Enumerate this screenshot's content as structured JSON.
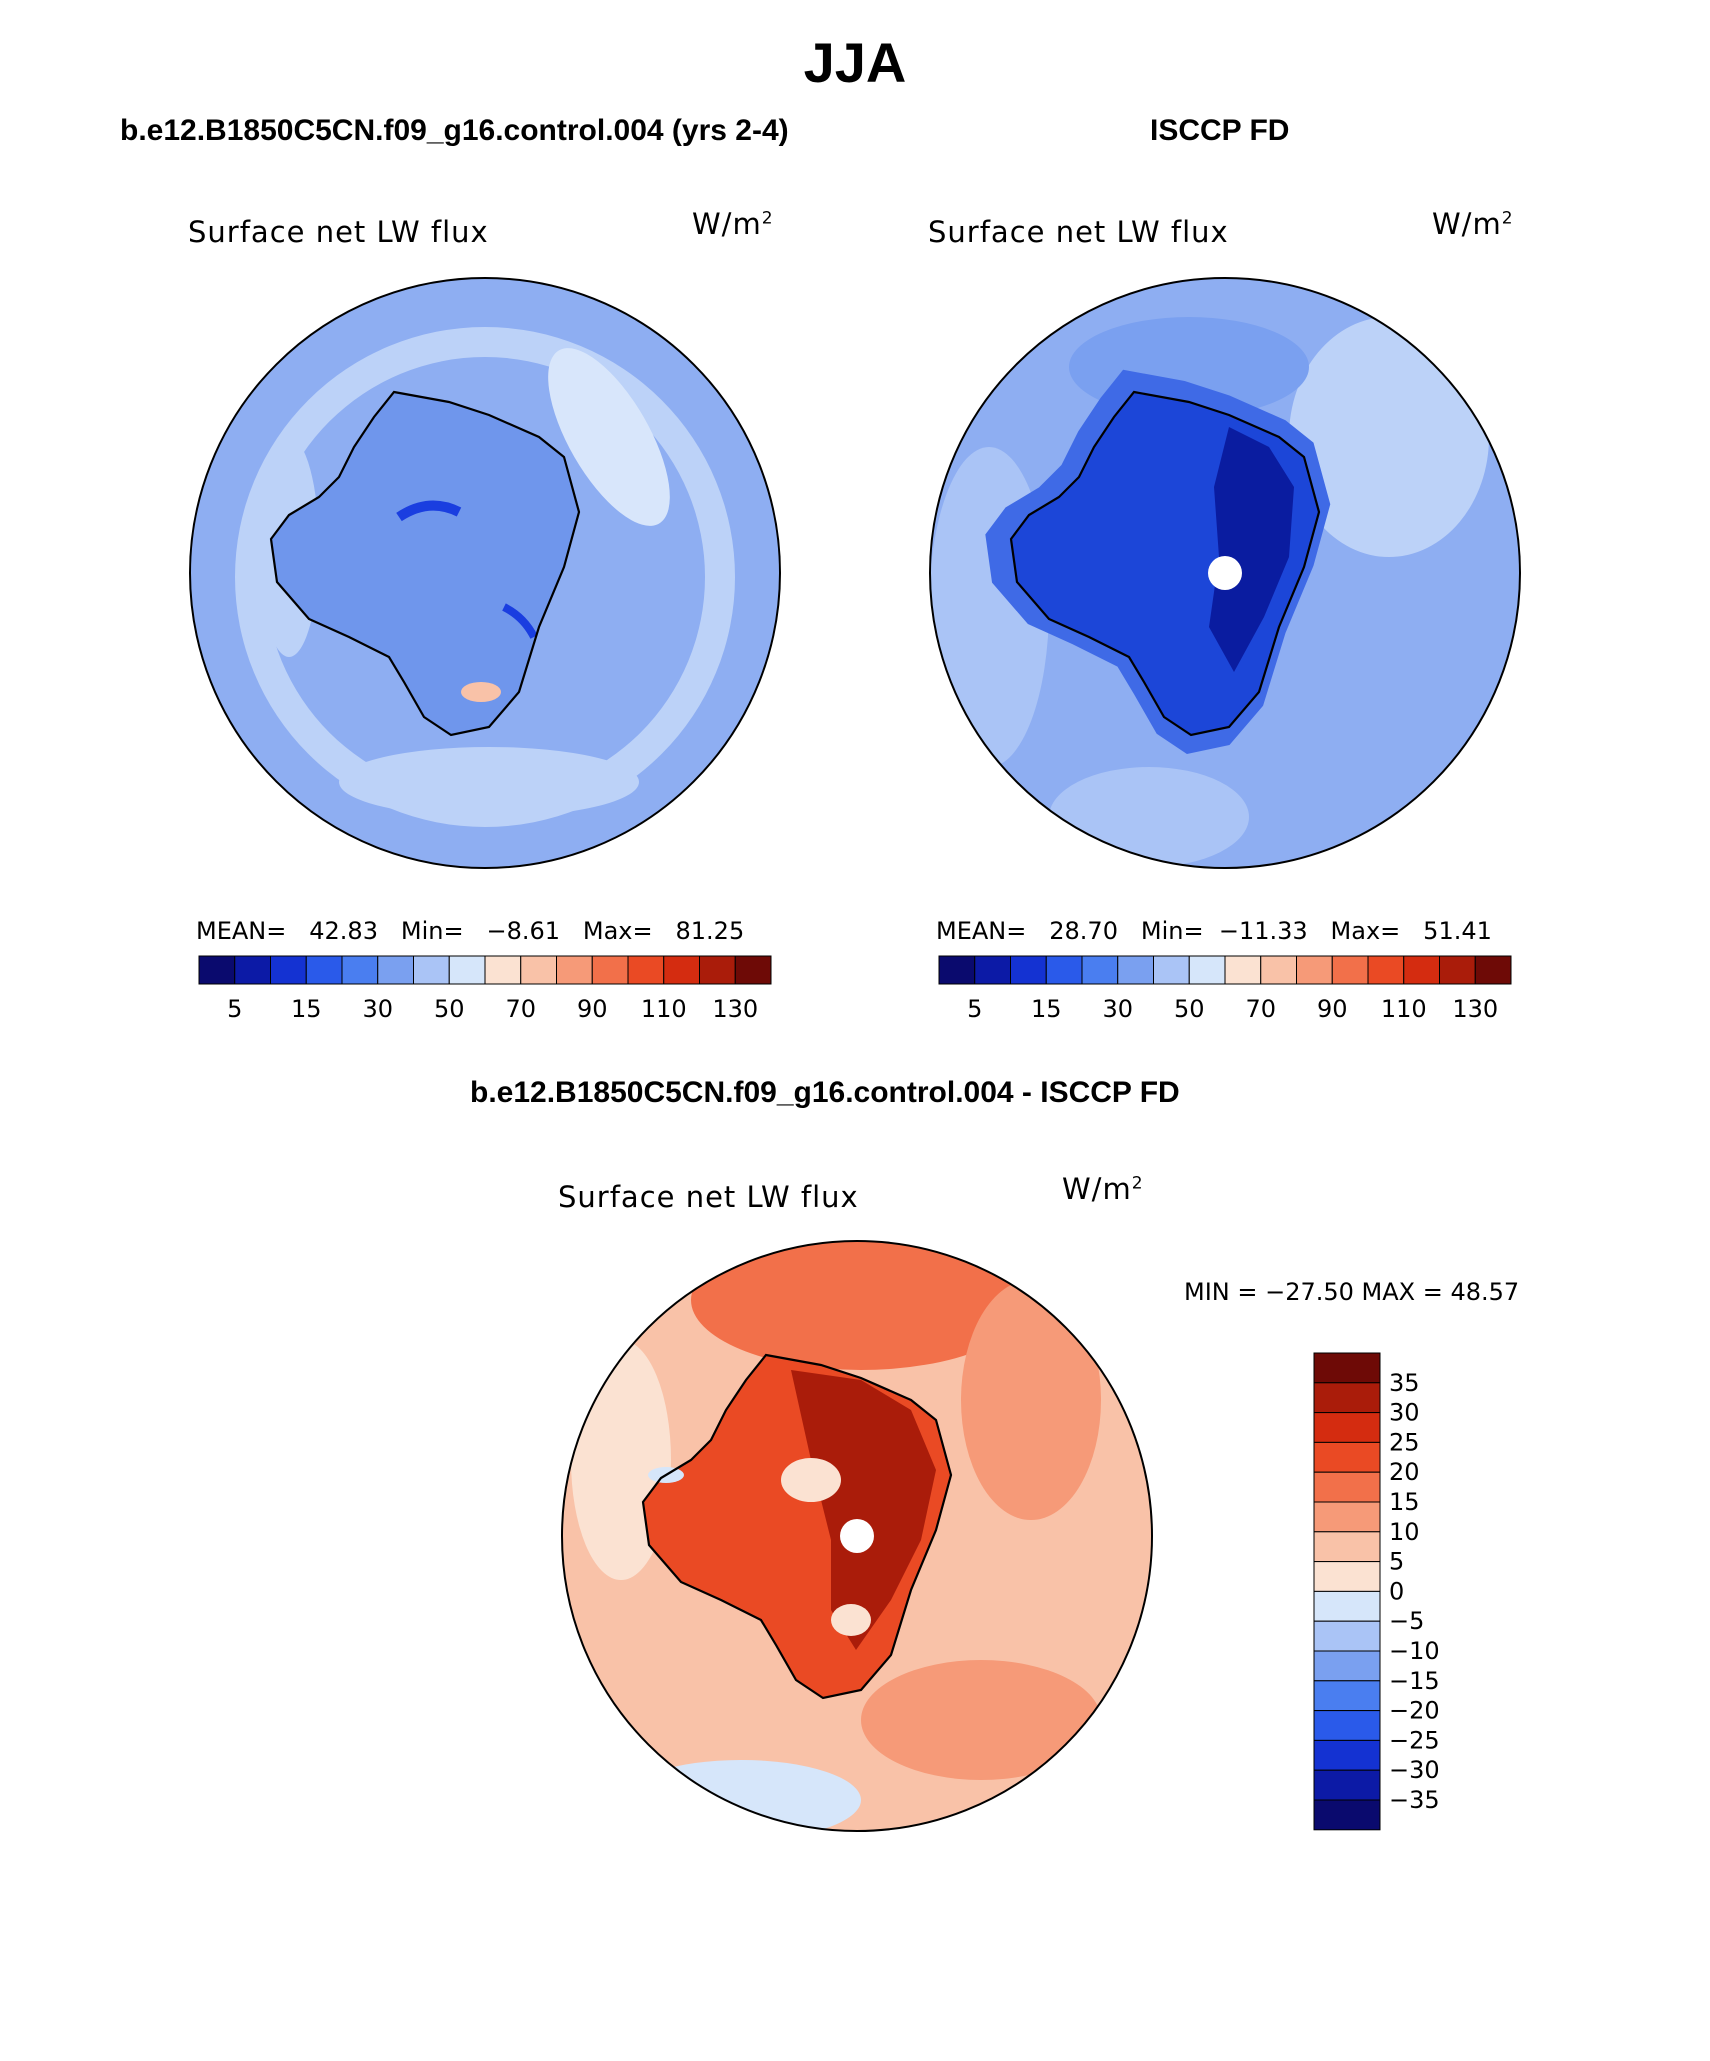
{
  "title": "JJA",
  "panels": [
    {
      "header": "b.e12.B1850C5CN.f09_g16.control.004 (yrs 2-4)",
      "variable": "Surface net LW flux",
      "units_base": "W/m",
      "units_exp": "2",
      "stats": {
        "mean_label": "MEAN=",
        "mean": "42.83",
        "min_label": "Min=",
        "min": "−8.61",
        "max_label": "Max=",
        "max": "81.25"
      }
    },
    {
      "header": "ISCCP FD",
      "variable": "Surface net LW flux",
      "units_base": "W/m",
      "units_exp": "2",
      "stats": {
        "mean_label": "MEAN=",
        "mean": "28.70",
        "min_label": "Min=",
        "min": "−11.33",
        "max_label": "Max=",
        "max": "51.41"
      }
    }
  ],
  "diff_panel": {
    "header": "b.e12.B1850C5CN.f09_g16.control.004 - ISCCP FD",
    "variable": "Surface net LW flux",
    "units_base": "W/m",
    "units_exp": "2",
    "minmax": "MIN = −27.50 MAX =   48.57"
  },
  "colorbar_abs": {
    "colors": [
      "#0a0a6e",
      "#0c1aa6",
      "#1432d2",
      "#2a5aea",
      "#4a7ef0",
      "#7aa0f0",
      "#aac4f6",
      "#d6e6fa",
      "#fbe2d2",
      "#f9c2a8",
      "#f69a78",
      "#f2704a",
      "#ea4a24",
      "#d42c10",
      "#aa1c0a",
      "#6e0a06"
    ],
    "tick_labels": [
      "5",
      "15",
      "30",
      "50",
      "70",
      "90",
      "110",
      "130"
    ]
  },
  "colorbar_diff": {
    "colors": [
      "#6e0a06",
      "#aa1c0a",
      "#d42c10",
      "#ea4a24",
      "#f2704a",
      "#f69a78",
      "#f9c2a8",
      "#fbe2d2",
      "#d6e6fa",
      "#aac4f6",
      "#7aa0f0",
      "#4a7ef0",
      "#2a5aea",
      "#1432d2",
      "#0c1aa6",
      "#0a0a6e"
    ],
    "tick_labels": [
      "35",
      "30",
      "25",
      "20",
      "15",
      "10",
      "5",
      "0",
      "−5",
      "−10",
      "−15",
      "−20",
      "−25",
      "−30",
      "−35"
    ]
  },
  "map_colors": {
    "ocean_abs": "#8eaef2",
    "ring_light": "#bcd2f8",
    "ring_pale": "#d8e6fb",
    "continent_model": "#6f96ec",
    "continent_obs_outer": "#3f6ae6",
    "continent_obs_mid": "#1c46d8",
    "continent_obs_core": "#0a1ca0",
    "diff_ocean": "#f9c2a8",
    "diff_warm1": "#f69a78",
    "diff_warm2": "#ea4a24",
    "diff_core": "#aa1c0a",
    "diff_cool": "#d6e6fa",
    "coast": "#000000"
  }
}
